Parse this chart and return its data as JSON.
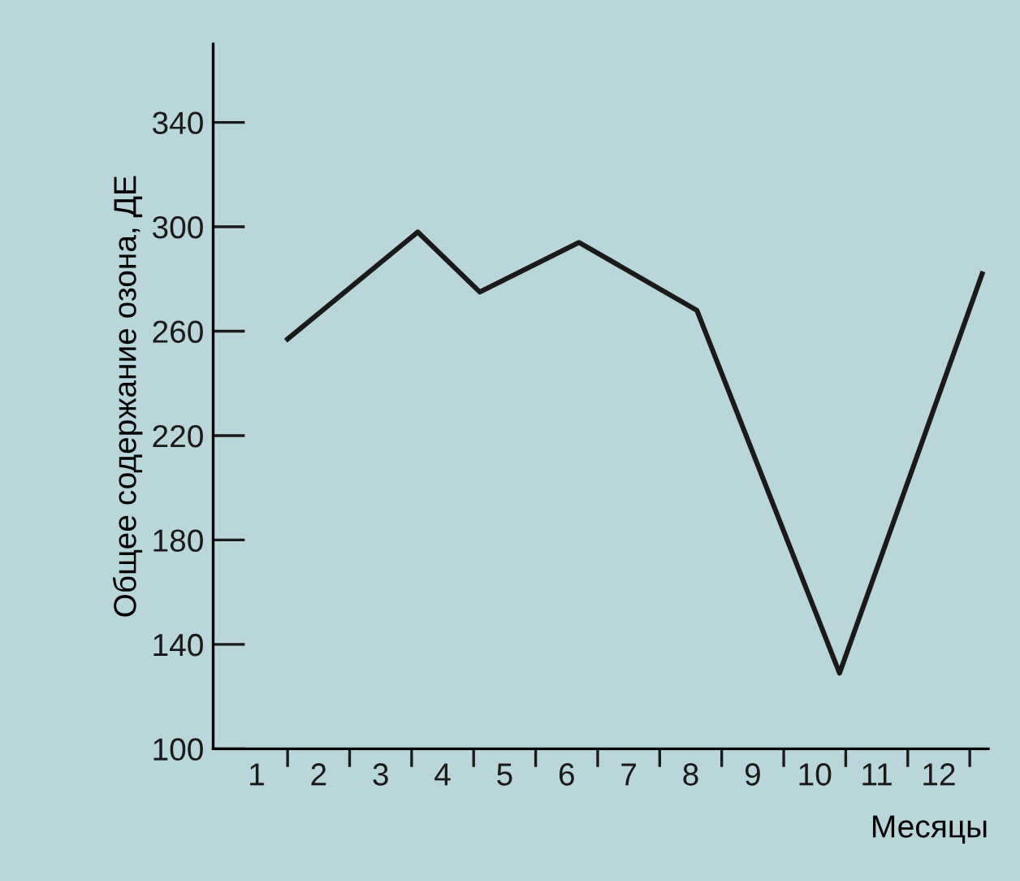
{
  "chart_data": {
    "type": "line",
    "xlabel": "Месяцы",
    "ylabel": "Общее содержание озона, ДЕ",
    "x": [
      1.5,
      3.6,
      4.6,
      6.2,
      8.1,
      10.4,
      12.7
    ],
    "series": [
      {
        "color": "#1a1a1a",
        "values": [
          257,
          298,
          275,
          294,
          268,
          129,
          282
        ]
      }
    ],
    "xlim": [
      0.3,
      12.8
    ],
    "xticks": [
      1,
      2,
      3,
      4,
      5,
      6,
      7,
      8,
      9,
      10,
      11,
      12,
      {
        "value": 1.5,
        "label": null
      },
      {
        "value": 2.5,
        "label": null
      },
      {
        "value": 3.5,
        "label": null
      },
      {
        "value": 4.5,
        "label": null
      },
      {
        "value": 5.5,
        "label": null
      },
      {
        "value": 6.5,
        "label": null
      },
      {
        "value": 7.5,
        "label": null
      },
      {
        "value": 8.5,
        "label": null
      },
      {
        "value": 9.5,
        "label": null
      },
      {
        "value": 10.5,
        "label": null
      },
      {
        "value": 11.5,
        "label": null
      },
      {
        "value": 12.5,
        "label": null
      }
    ],
    "ylim": [
      100,
      370
    ],
    "yticks": [
      100,
      140,
      180,
      220,
      260,
      300,
      340
    ],
    "grid": false,
    "legend": false,
    "marker": "none",
    "line_style": "solid"
  }
}
